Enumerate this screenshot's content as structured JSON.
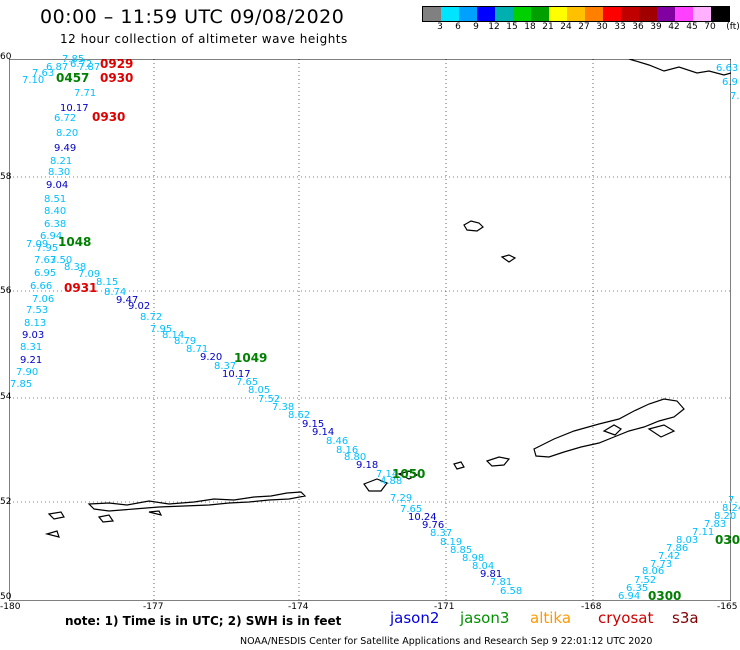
{
  "header": {
    "title": "00:00 – 11:59 UTC 09/08/2020",
    "subtitle": "12 hour collection of altimeter wave heights"
  },
  "colorbar": {
    "unit_label": "(ft)",
    "labels": [
      "3",
      "6",
      "9",
      "12",
      "15",
      "18",
      "21",
      "24",
      "27",
      "30",
      "33",
      "36",
      "39",
      "42",
      "45",
      "70"
    ],
    "colors": [
      "#808080",
      "#00e5ff",
      "#00a0ff",
      "#0000ff",
      "#00b0b0",
      "#00d000",
      "#00a000",
      "#ffff00",
      "#ffc000",
      "#ff8000",
      "#ff0000",
      "#c00000",
      "#a00000",
      "#8000a0",
      "#ff40ff",
      "#ffb0ff",
      "#000000"
    ]
  },
  "map": {
    "lat_labels": [
      "60",
      "58",
      "56",
      "54",
      "52",
      "50"
    ],
    "lon_labels": [
      "-180",
      "-177",
      "-174",
      "-171",
      "-168",
      "-165"
    ]
  },
  "wave_values": [
    {
      "t": "7.85",
      "c": "#00bfff"
    },
    {
      "t": "6.72",
      "c": "#00bfff"
    },
    {
      "t": "6.87",
      "c": "#00bfff"
    },
    {
      "t": "7.87",
      "c": "#00bfff"
    },
    {
      "t": "7.63",
      "c": "#00bfff"
    },
    {
      "t": "7.10",
      "c": "#00bfff"
    },
    {
      "t": "7.71",
      "c": "#00bfff"
    },
    {
      "t": "10.17",
      "c": "#0000c8"
    },
    {
      "t": "6.72",
      "c": "#00bfff"
    },
    {
      "t": "8.20",
      "c": "#00bfff"
    },
    {
      "t": "9.49",
      "c": "#0000c8"
    },
    {
      "t": "8.21",
      "c": "#00bfff"
    },
    {
      "t": "8.30",
      "c": "#00bfff"
    },
    {
      "t": "9.04",
      "c": "#0000c8"
    },
    {
      "t": "8.51",
      "c": "#00bfff"
    },
    {
      "t": "8.40",
      "c": "#00bfff"
    },
    {
      "t": "6.38",
      "c": "#00bfff"
    },
    {
      "t": "6.94",
      "c": "#00bfff"
    },
    {
      "t": "7.09",
      "c": "#00bfff"
    },
    {
      "t": "7.95",
      "c": "#00bfff"
    },
    {
      "t": "7.63",
      "c": "#00bfff"
    },
    {
      "t": "7.50",
      "c": "#00bfff"
    },
    {
      "t": "8.38",
      "c": "#00bfff"
    },
    {
      "t": "6.95",
      "c": "#00bfff"
    },
    {
      "t": "7.09",
      "c": "#00bfff"
    },
    {
      "t": "8.15",
      "c": "#00bfff"
    },
    {
      "t": "6.66",
      "c": "#00bfff"
    },
    {
      "t": "8.74",
      "c": "#00bfff"
    },
    {
      "t": "7.06",
      "c": "#00bfff"
    },
    {
      "t": "9.47",
      "c": "#0000c8"
    },
    {
      "t": "7.53",
      "c": "#00bfff"
    },
    {
      "t": "9.02",
      "c": "#0000c8"
    },
    {
      "t": "8.13",
      "c": "#00bfff"
    },
    {
      "t": "8.72",
      "c": "#00bfff"
    },
    {
      "t": "9.03",
      "c": "#0000c8"
    },
    {
      "t": "7.95",
      "c": "#00bfff"
    },
    {
      "t": "8.31",
      "c": "#00bfff"
    },
    {
      "t": "8.14",
      "c": "#00bfff"
    },
    {
      "t": "8.79",
      "c": "#00bfff"
    },
    {
      "t": "9.21",
      "c": "#0000c8"
    },
    {
      "t": "8.71",
      "c": "#00bfff"
    },
    {
      "t": "9.20",
      "c": "#0000c8"
    },
    {
      "t": "7.90",
      "c": "#00bfff"
    },
    {
      "t": "8.37",
      "c": "#00bfff"
    },
    {
      "t": "10.17",
      "c": "#0000c8"
    },
    {
      "t": "7.85",
      "c": "#00bfff"
    },
    {
      "t": "7.65",
      "c": "#00bfff"
    },
    {
      "t": "8.05",
      "c": "#00bfff"
    },
    {
      "t": "7.52",
      "c": "#00bfff"
    },
    {
      "t": "7.38",
      "c": "#00bfff"
    },
    {
      "t": "8.62",
      "c": "#00bfff"
    },
    {
      "t": "9.15",
      "c": "#0000c8"
    },
    {
      "t": "9.14",
      "c": "#0000c8"
    },
    {
      "t": "8.46",
      "c": "#00bfff"
    },
    {
      "t": "8.16",
      "c": "#00bfff"
    },
    {
      "t": "8.80",
      "c": "#00bfff"
    },
    {
      "t": "9.18",
      "c": "#0000c8"
    },
    {
      "t": "7.14",
      "c": "#00bfff"
    },
    {
      "t": "4.88",
      "c": "#00bfff"
    },
    {
      "t": "7.29",
      "c": "#00bfff"
    },
    {
      "t": "7.65",
      "c": "#00bfff"
    },
    {
      "t": "10.24",
      "c": "#0000c8"
    },
    {
      "t": "9.76",
      "c": "#0000c8"
    },
    {
      "t": "8.37",
      "c": "#00bfff"
    },
    {
      "t": "8.19",
      "c": "#00bfff"
    },
    {
      "t": "8.85",
      "c": "#00bfff"
    },
    {
      "t": "8.98",
      "c": "#00bfff"
    },
    {
      "t": "8.04",
      "c": "#00bfff"
    },
    {
      "t": "9.81",
      "c": "#0000c8"
    },
    {
      "t": "7.81",
      "c": "#00bfff"
    },
    {
      "t": "6.58",
      "c": "#00bfff"
    },
    {
      "t": "6.94",
      "c": "#00bfff"
    },
    {
      "t": "6.35",
      "c": "#00bfff"
    },
    {
      "t": "7.52",
      "c": "#00bfff"
    },
    {
      "t": "8.06",
      "c": "#00bfff"
    },
    {
      "t": "7.73",
      "c": "#00bfff"
    },
    {
      "t": "7.42",
      "c": "#00bfff"
    },
    {
      "t": "7.86",
      "c": "#00bfff"
    },
    {
      "t": "8.03",
      "c": "#00bfff"
    },
    {
      "t": "7.11",
      "c": "#00bfff"
    },
    {
      "t": "7.83",
      "c": "#00bfff"
    },
    {
      "t": "8.20",
      "c": "#00bfff"
    },
    {
      "t": "8.24",
      "c": "#00bfff"
    },
    {
      "t": "7.",
      "c": "#00bfff"
    },
    {
      "t": "6.63",
      "c": "#00bfff"
    },
    {
      "t": "6.9",
      "c": "#00bfff"
    },
    {
      "t": "7.",
      "c": "#00bfff"
    }
  ],
  "time_labels": [
    {
      "t": "0929",
      "c": "#e00000"
    },
    {
      "t": "0457",
      "c": "#008000"
    },
    {
      "t": "0930",
      "c": "#e00000"
    },
    {
      "t": "0930",
      "c": "#e00000"
    },
    {
      "t": "1048",
      "c": "#008000"
    },
    {
      "t": "0931",
      "c": "#e00000"
    },
    {
      "t": "1049",
      "c": "#008000"
    },
    {
      "t": "1050",
      "c": "#008000"
    },
    {
      "t": "0300",
      "c": "#008000"
    },
    {
      "t": "030",
      "c": "#008000"
    }
  ],
  "footer": {
    "note": "note:  1) Time is in UTC;  2) SWH is in feet",
    "legend": [
      {
        "label": "jason2",
        "color": "#0000e0"
      },
      {
        "label": "jason3",
        "color": "#009000"
      },
      {
        "label": "altika",
        "color": "#ff9900"
      },
      {
        "label": "cryosat",
        "color": "#cc0000"
      },
      {
        "label": "s3a",
        "color": "#800000"
      }
    ],
    "credit": "NOAA/NESDIS Center for Satellite Applications and Research    Sep  9 22:01:12 UTC 2020"
  }
}
